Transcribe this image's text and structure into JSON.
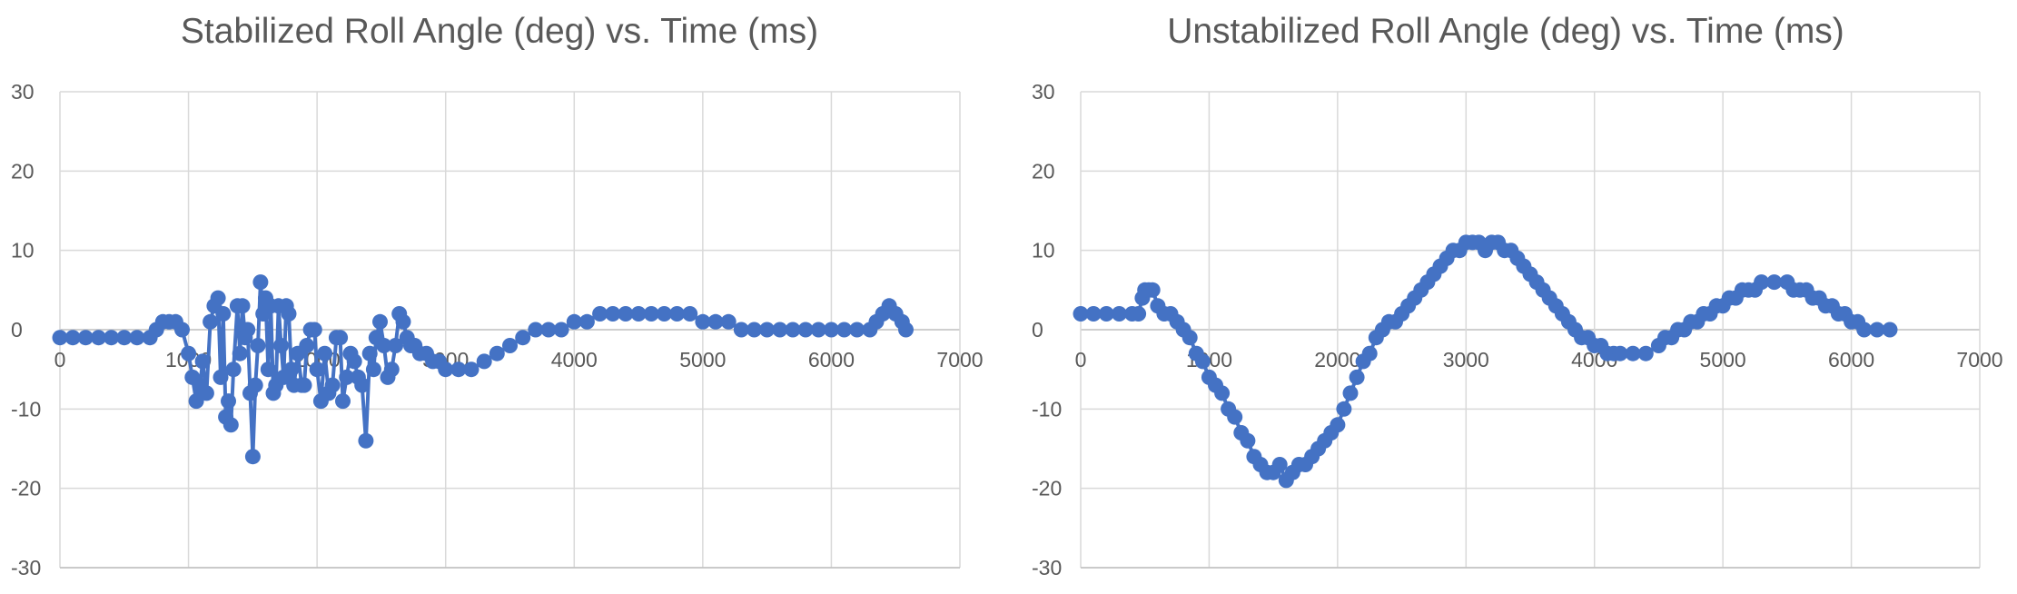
{
  "chart_data": [
    {
      "type": "line",
      "title": "Stabilized Roll Angle (deg) vs. Time (ms)",
      "xlabel": "",
      "ylabel": "",
      "xlim": [
        0,
        7000
      ],
      "ylim": [
        -30,
        30
      ],
      "x_ticks": [
        "0",
        "1000",
        "2000",
        "3000",
        "4000",
        "5000",
        "6000",
        "7000"
      ],
      "y_ticks": [
        "30",
        "20",
        "10",
        "0",
        "-10",
        "-20",
        "-30"
      ],
      "grid": true,
      "legend": "none",
      "color": "#4472c4",
      "markers": true,
      "series": [
        {
          "x": [
            0,
            100,
            200,
            300,
            400,
            500,
            600,
            700,
            750,
            800,
            850,
            900,
            950,
            1000,
            1030,
            1060,
            1090,
            1110,
            1140,
            1170,
            1200,
            1230,
            1250,
            1270,
            1290,
            1310,
            1330,
            1350,
            1380,
            1400,
            1420,
            1440,
            1460,
            1480,
            1500,
            1520,
            1540,
            1560,
            1580,
            1600,
            1620,
            1640,
            1660,
            1680,
            1700,
            1720,
            1740,
            1760,
            1780,
            1800,
            1820,
            1850,
            1880,
            1900,
            1920,
            1950,
            1980,
            2000,
            2030,
            2060,
            2090,
            2120,
            2150,
            2180,
            2200,
            2230,
            2260,
            2290,
            2320,
            2350,
            2380,
            2410,
            2440,
            2460,
            2490,
            2520,
            2550,
            2580,
            2610,
            2640,
            2670,
            2700,
            2730,
            2760,
            2800,
            2850,
            2900,
            2950,
            3000,
            3100,
            3200,
            3300,
            3400,
            3500,
            3600,
            3700,
            3800,
            3900,
            4000,
            4100,
            4200,
            4300,
            4400,
            4500,
            4600,
            4700,
            4800,
            4900,
            5000,
            5100,
            5200,
            5300,
            5400,
            5500,
            5600,
            5700,
            5800,
            5900,
            6000,
            6100,
            6200,
            6300,
            6350,
            6400,
            6450,
            6500,
            6550,
            6580
          ],
          "y": [
            -1,
            -1,
            -1,
            -1,
            -1,
            -1,
            -1,
            -1,
            0,
            1,
            1,
            1,
            0,
            -3,
            -6,
            -9,
            -7,
            -4,
            -8,
            1,
            3,
            4,
            -6,
            2,
            -11,
            -9,
            -12,
            -5,
            3,
            -3,
            3,
            -1,
            0,
            -8,
            -16,
            -7,
            -2,
            6,
            2,
            4,
            -5,
            3,
            -8,
            -7,
            3,
            -2,
            -6,
            3,
            2,
            -5,
            -7,
            -3,
            -7,
            -7,
            -2,
            0,
            0,
            -5,
            -9,
            -3,
            -8,
            -7,
            -1,
            -1,
            -9,
            -6,
            -3,
            -4,
            -6,
            -7,
            -14,
            -3,
            -5,
            -1,
            1,
            -2,
            -6,
            -5,
            -2,
            2,
            1,
            -1,
            -2,
            -2,
            -3,
            -3,
            -4,
            -4,
            -5,
            -5,
            -5,
            -4,
            -3,
            -2,
            -1,
            0,
            0,
            0,
            1,
            1,
            2,
            2,
            2,
            2,
            2,
            2,
            2,
            2,
            1,
            1,
            1,
            0,
            0,
            0,
            0,
            0,
            0,
            0,
            0,
            0,
            0,
            0,
            1,
            2,
            3,
            2,
            1,
            0
          ]
        }
      ]
    },
    {
      "type": "line",
      "title": "Unstabilized Roll Angle (deg) vs. Time (ms)",
      "xlabel": "",
      "ylabel": "",
      "xlim": [
        0,
        7000
      ],
      "ylim": [
        -30,
        30
      ],
      "x_ticks": [
        "0",
        "1000",
        "2000",
        "3000",
        "4000",
        "5000",
        "6000",
        "7000"
      ],
      "y_ticks": [
        "30",
        "20",
        "10",
        "0",
        "-10",
        "-20",
        "-30"
      ],
      "grid": true,
      "legend": "none",
      "color": "#4472c4",
      "markers": true,
      "series": [
        {
          "x": [
            0,
            100,
            200,
            300,
            400,
            450,
            480,
            500,
            530,
            560,
            600,
            650,
            700,
            750,
            800,
            850,
            900,
            950,
            1000,
            1050,
            1100,
            1150,
            1200,
            1250,
            1300,
            1350,
            1400,
            1450,
            1500,
            1550,
            1600,
            1650,
            1700,
            1750,
            1800,
            1850,
            1900,
            1950,
            2000,
            2050,
            2100,
            2150,
            2200,
            2250,
            2300,
            2350,
            2400,
            2450,
            2500,
            2550,
            2600,
            2650,
            2700,
            2750,
            2800,
            2850,
            2900,
            2950,
            3000,
            3050,
            3100,
            3150,
            3200,
            3250,
            3300,
            3350,
            3400,
            3450,
            3500,
            3550,
            3600,
            3650,
            3700,
            3750,
            3800,
            3850,
            3900,
            3950,
            4000,
            4050,
            4100,
            4150,
            4200,
            4300,
            4400,
            4500,
            4550,
            4600,
            4650,
            4700,
            4750,
            4800,
            4850,
            4900,
            4950,
            5000,
            5050,
            5100,
            5150,
            5200,
            5250,
            5300,
            5400,
            5500,
            5550,
            5600,
            5650,
            5700,
            5750,
            5800,
            5850,
            5900,
            5950,
            6000,
            6050,
            6100,
            6200,
            6300
          ],
          "y": [
            2,
            2,
            2,
            2,
            2,
            2,
            4,
            5,
            5,
            5,
            3,
            2,
            2,
            1,
            0,
            -1,
            -3,
            -4,
            -6,
            -7,
            -8,
            -10,
            -11,
            -13,
            -14,
            -16,
            -17,
            -18,
            -18,
            -17,
            -19,
            -18,
            -17,
            -17,
            -16,
            -15,
            -14,
            -13,
            -12,
            -10,
            -8,
            -6,
            -4,
            -3,
            -1,
            0,
            1,
            1,
            2,
            3,
            4,
            5,
            6,
            7,
            8,
            9,
            10,
            10,
            11,
            11,
            11,
            10,
            11,
            11,
            10,
            10,
            9,
            8,
            7,
            6,
            5,
            4,
            3,
            2,
            1,
            0,
            -1,
            -1,
            -2,
            -2,
            -3,
            -3,
            -3,
            -3,
            -3,
            -2,
            -1,
            -1,
            0,
            0,
            1,
            1,
            2,
            2,
            3,
            3,
            4,
            4,
            5,
            5,
            5,
            6,
            6,
            6,
            5,
            5,
            5,
            4,
            4,
            3,
            3,
            2,
            2,
            1,
            1,
            0,
            0,
            0
          ]
        }
      ]
    }
  ]
}
